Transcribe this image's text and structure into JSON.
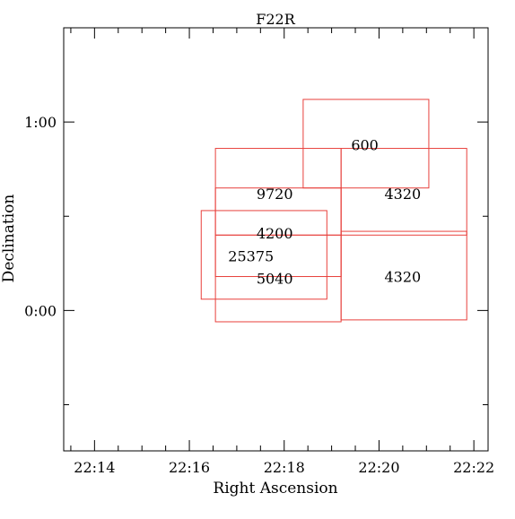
{
  "chart_data": {
    "type": "scatter",
    "title": "F22R",
    "xlabel": "Right Ascension",
    "ylabel": "Declination",
    "x_unit": "minutes after 22h",
    "y_unit": "degrees",
    "xlim": [
      13.35,
      22.3
    ],
    "ylim": [
      -0.745,
      1.5
    ],
    "x_ticks": [
      {
        "value": 14,
        "label": "22:14"
      },
      {
        "value": 16,
        "label": "22:16"
      },
      {
        "value": 18,
        "label": "22:18"
      },
      {
        "value": 20,
        "label": "22:20"
      },
      {
        "value": 22,
        "label": "22:22"
      }
    ],
    "y_ticks": [
      {
        "value": 0,
        "label": "0:00"
      },
      {
        "value": 1,
        "label": "1:00"
      }
    ],
    "minor_y_ticks": [
      -0.5,
      0.5
    ],
    "grid": false,
    "box_color": "#e8403c",
    "fields": [
      {
        "label": "600",
        "ra": [
          18.4,
          21.05
        ],
        "dec": [
          0.65,
          1.12
        ],
        "label_pos": [
          19.7,
          0.88
        ]
      },
      {
        "label": "9720",
        "ra": [
          16.55,
          19.2
        ],
        "dec": [
          0.4,
          0.86
        ],
        "label_pos": [
          17.8,
          0.62
        ]
      },
      {
        "label": "4320",
        "ra": [
          19.2,
          21.85
        ],
        "dec": [
          0.4,
          0.86
        ],
        "label_pos": [
          20.5,
          0.62
        ]
      },
      {
        "label": "4200",
        "ra": [
          16.55,
          19.2
        ],
        "dec": [
          0.18,
          0.65
        ],
        "label_pos": [
          17.8,
          0.41
        ]
      },
      {
        "label": "25375",
        "ra": [
          16.25,
          18.9
        ],
        "dec": [
          0.06,
          0.53
        ],
        "label_pos": [
          17.3,
          0.29
        ]
      },
      {
        "label": "5040",
        "ra": [
          16.55,
          19.2
        ],
        "dec": [
          -0.06,
          0.4
        ],
        "label_pos": [
          17.8,
          0.17
        ]
      },
      {
        "label": "4320",
        "ra": [
          19.2,
          21.85
        ],
        "dec": [
          -0.05,
          0.42
        ],
        "label_pos": [
          20.5,
          0.18
        ]
      }
    ]
  }
}
